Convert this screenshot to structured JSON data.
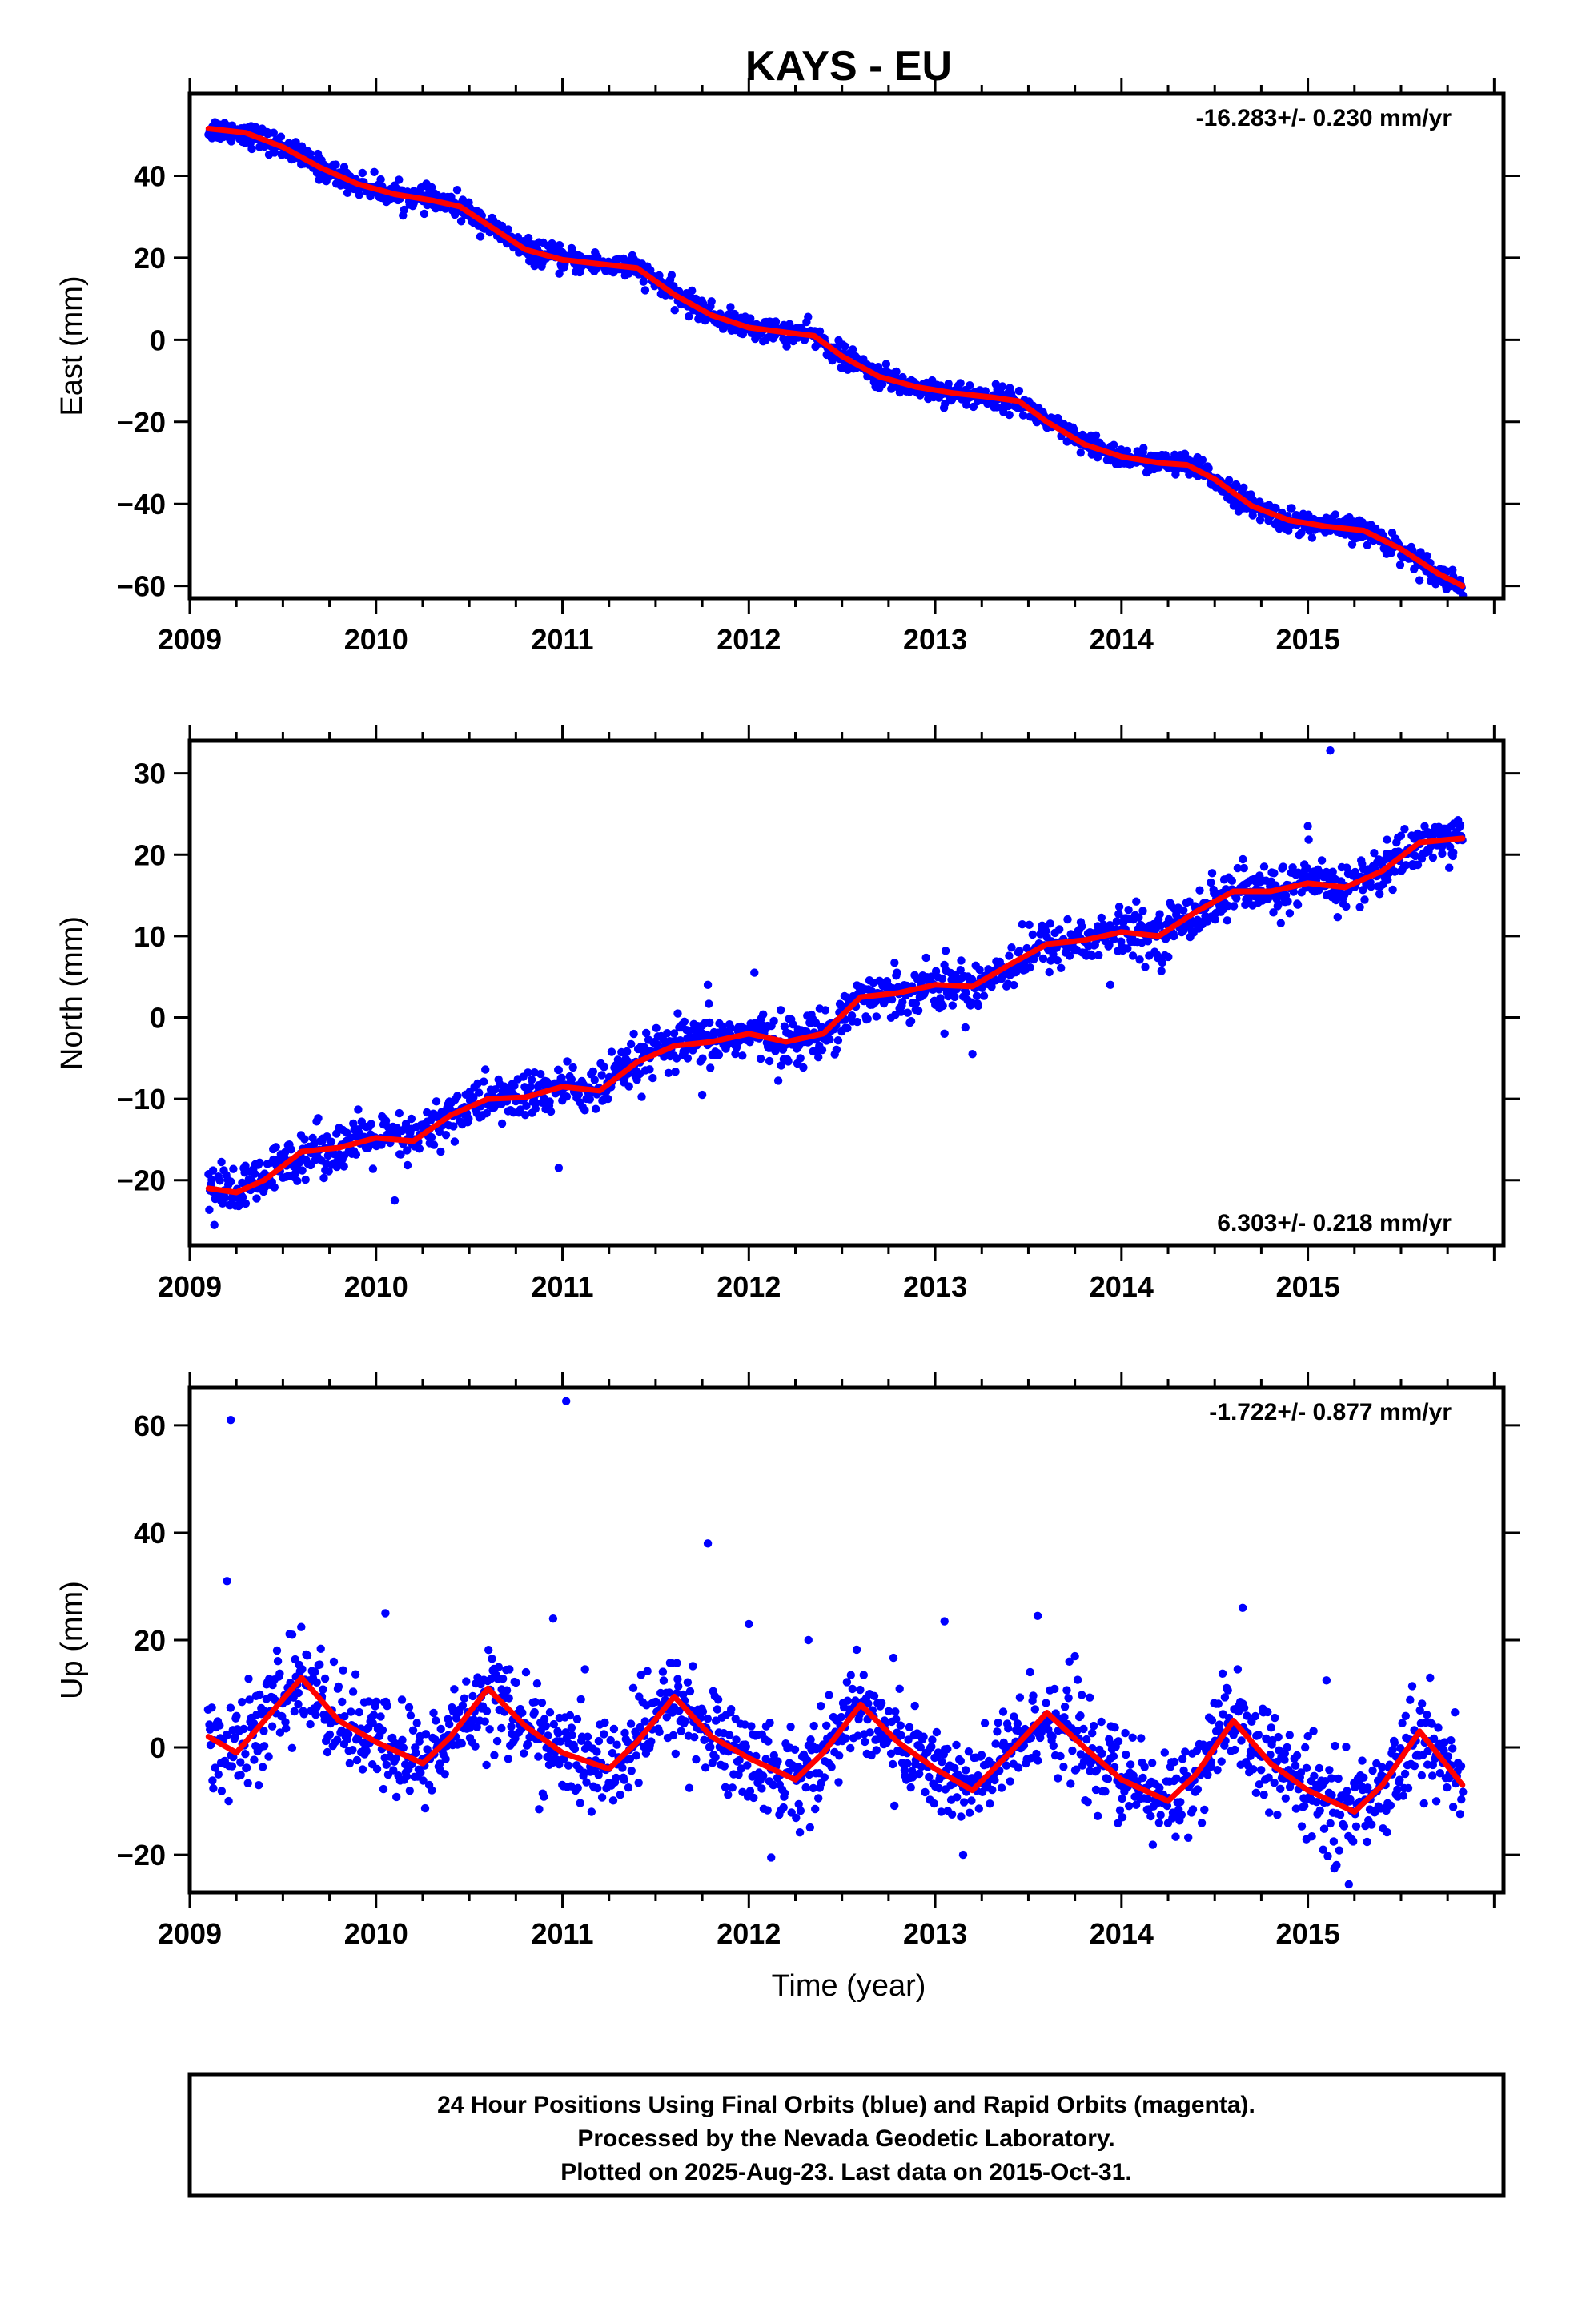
{
  "chart_data": [
    {
      "type": "scatter",
      "title": "KAYS - EU",
      "ylabel": "East (mm)",
      "rate_label": "-16.283+/- 0.230 mm/yr",
      "rate_position": "top-right",
      "xlim": [
        2009.0,
        2016.05
      ],
      "ylim": [
        -63,
        60
      ],
      "yticks": [
        -60,
        -40,
        -20,
        0,
        20,
        40
      ],
      "xticks": [
        2009,
        2010,
        2011,
        2012,
        2013,
        2014,
        2015
      ],
      "start_x": 2009.1,
      "end_x": 2015.83,
      "noise_mm": 1.4,
      "model_fit": {
        "x": [
          2009.1,
          2009.3,
          2009.5,
          2009.7,
          2009.9,
          2010.1,
          2010.3,
          2010.45,
          2010.6,
          2010.8,
          2011.0,
          2011.2,
          2011.4,
          2011.6,
          2011.8,
          2012.0,
          2012.2,
          2012.35,
          2012.5,
          2012.7,
          2012.9,
          2013.1,
          2013.3,
          2013.45,
          2013.6,
          2013.8,
          2014.0,
          2014.2,
          2014.35,
          2014.5,
          2014.7,
          2014.9,
          2015.1,
          2015.3,
          2015.5,
          2015.7,
          2015.83
        ],
        "y": [
          51.5,
          50.5,
          47.0,
          42.0,
          38.0,
          35.5,
          34.0,
          32.5,
          28.0,
          22.0,
          19.5,
          18.5,
          17.5,
          11.0,
          6.0,
          3.0,
          1.8,
          1.0,
          -4.0,
          -9.0,
          -11.5,
          -13.0,
          -14.0,
          -15.0,
          -20.0,
          -25.5,
          -28.5,
          -30.0,
          -30.5,
          -34.0,
          -40.5,
          -44.0,
          -45.5,
          -46.5,
          -51.0,
          -57.0,
          -60.0
        ]
      }
    },
    {
      "type": "scatter",
      "ylabel": "North (mm)",
      "rate_label": "6.303+/- 0.218 mm/yr",
      "rate_position": "bottom-right",
      "xlim": [
        2009.0,
        2016.05
      ],
      "ylim": [
        -28,
        34
      ],
      "yticks": [
        -20,
        -10,
        0,
        10,
        20,
        30
      ],
      "xticks": [
        2009,
        2010,
        2011,
        2012,
        2013,
        2014,
        2015
      ],
      "start_x": 2009.1,
      "end_x": 2015.83,
      "noise_mm": 1.5,
      "model_fit": {
        "x": [
          2009.1,
          2009.25,
          2009.4,
          2009.6,
          2009.8,
          2010.0,
          2010.2,
          2010.4,
          2010.6,
          2010.8,
          2011.0,
          2011.2,
          2011.4,
          2011.6,
          2011.8,
          2012.0,
          2012.2,
          2012.4,
          2012.6,
          2012.8,
          2013.0,
          2013.2,
          2013.4,
          2013.6,
          2013.8,
          2014.0,
          2014.2,
          2014.4,
          2014.6,
          2014.8,
          2015.0,
          2015.2,
          2015.4,
          2015.6,
          2015.83
        ],
        "y": [
          -21.0,
          -21.5,
          -20.0,
          -16.5,
          -16.0,
          -14.8,
          -15.2,
          -12.0,
          -10.0,
          -9.8,
          -8.5,
          -9.0,
          -5.5,
          -3.5,
          -3.0,
          -2.0,
          -3.0,
          -2.0,
          2.5,
          3.0,
          4.0,
          3.8,
          6.5,
          9.0,
          9.5,
          10.5,
          10.0,
          13.0,
          15.5,
          15.5,
          16.5,
          16.0,
          18.0,
          21.5,
          22.0
        ]
      },
      "outliers": [
        [
          2015.12,
          32.8
        ],
        [
          2015.0,
          23.5
        ],
        [
          2010.1,
          -22.5
        ],
        [
          2010.98,
          -18.5
        ],
        [
          2011.75,
          -9.5
        ],
        [
          2012.03,
          5.5
        ],
        [
          2013.2,
          -4.5
        ],
        [
          2013.05,
          -2.0
        ],
        [
          2011.78,
          4.0
        ],
        [
          2013.94,
          4.0
        ]
      ]
    },
    {
      "type": "scatter",
      "ylabel": "Up (mm)",
      "xlabel": "Time (year)",
      "rate_label": "-1.722+/- 0.877 mm/yr",
      "rate_position": "top-right",
      "xlim": [
        2009.0,
        2016.05
      ],
      "ylim": [
        -27,
        67
      ],
      "yticks": [
        -20,
        0,
        20,
        40,
        60
      ],
      "xticks": [
        2009,
        2010,
        2011,
        2012,
        2013,
        2014,
        2015
      ],
      "start_x": 2009.1,
      "end_x": 2015.83,
      "noise_mm": 4.5,
      "model_fit": {
        "x": [
          2009.1,
          2009.25,
          2009.4,
          2009.6,
          2009.8,
          2010.0,
          2010.25,
          2010.4,
          2010.6,
          2010.8,
          2011.0,
          2011.25,
          2011.4,
          2011.6,
          2011.8,
          2012.0,
          2012.25,
          2012.4,
          2012.6,
          2012.8,
          2013.0,
          2013.2,
          2013.4,
          2013.6,
          2013.8,
          2014.0,
          2014.25,
          2014.4,
          2014.6,
          2014.8,
          2015.0,
          2015.25,
          2015.4,
          2015.6,
          2015.83
        ],
        "y": [
          2.0,
          -1.0,
          5.0,
          13.0,
          5.0,
          1.0,
          -3.0,
          2.0,
          11.0,
          4.0,
          -1.0,
          -4.0,
          1.0,
          9.5,
          2.0,
          -2.0,
          -6.0,
          -1.0,
          8.0,
          1.0,
          -4.0,
          -8.0,
          -1.0,
          6.5,
          0.0,
          -6.0,
          -10.0,
          -5.0,
          5.0,
          -3.0,
          -8.0,
          -12.0,
          -7.0,
          3.0,
          -7.0
        ]
      },
      "outliers": [
        [
          2009.22,
          61.0
        ],
        [
          2011.02,
          64.5
        ],
        [
          2011.78,
          38.0
        ],
        [
          2009.2,
          31.0
        ],
        [
          2010.05,
          25.0
        ],
        [
          2010.95,
          24.0
        ],
        [
          2012.0,
          23.0
        ],
        [
          2013.05,
          23.5
        ],
        [
          2013.55,
          24.5
        ],
        [
          2014.65,
          26.0
        ],
        [
          2012.32,
          20.0
        ],
        [
          2012.12,
          -20.5
        ],
        [
          2013.15,
          -20.0
        ],
        [
          2015.22,
          -25.5
        ],
        [
          2015.1,
          12.5
        ],
        [
          2013.75,
          17.0
        ],
        [
          2009.55,
          21.0
        ]
      ]
    }
  ],
  "footer": {
    "line1": "24 Hour Positions Using Final Orbits (blue) and Rapid Orbits (magenta).",
    "line2": "Processed by the Nevada Geodetic Laboratory.",
    "line3": "Plotted on 2025-Aug-23. Last data on 2015-Oct-31."
  },
  "colors": {
    "points": "#0000ff",
    "fit": "#ff0000",
    "frame": "#000000"
  }
}
